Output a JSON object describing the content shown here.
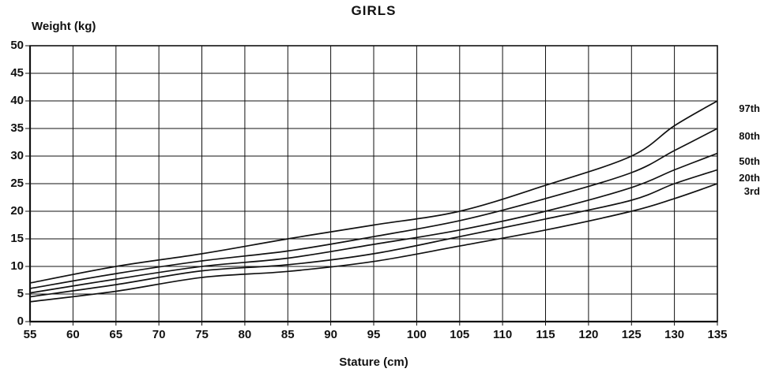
{
  "page": {
    "background": "#ffffff",
    "ink": "#111111"
  },
  "title": "GIRLS",
  "y_axis_label": "Weight (kg)",
  "x_axis_label": "Stature (cm)",
  "chart_data": {
    "type": "line",
    "title": "GIRLS",
    "xlabel": "Stature (cm)",
    "ylabel": "Weight (kg)",
    "xlim": [
      55,
      135
    ],
    "ylim": [
      0,
      50
    ],
    "x_ticks": [
      55,
      60,
      65,
      70,
      75,
      80,
      85,
      90,
      95,
      100,
      105,
      110,
      115,
      120,
      125,
      130,
      135
    ],
    "y_ticks": [
      0,
      5,
      10,
      15,
      20,
      25,
      30,
      35,
      40,
      45,
      50
    ],
    "grid": true,
    "legend_position": "labels-at-right-curve-ends",
    "x": [
      55,
      65,
      75,
      85,
      95,
      105,
      115,
      125,
      130,
      135
    ],
    "series": [
      {
        "name": "97th",
        "values": [
          7.0,
          10.0,
          12.3,
          15.0,
          17.5,
          20.0,
          24.7,
          30.0,
          35.5,
          40.0
        ]
      },
      {
        "name": "80th",
        "values": [
          6.0,
          8.7,
          11.0,
          12.8,
          15.4,
          18.3,
          22.3,
          27.0,
          31.0,
          35.0
        ]
      },
      {
        "name": "50th",
        "values": [
          5.2,
          7.7,
          10.0,
          11.5,
          14.0,
          16.6,
          20.0,
          24.3,
          27.5,
          30.5
        ]
      },
      {
        "name": "20th",
        "values": [
          4.5,
          6.7,
          9.2,
          10.3,
          12.3,
          15.4,
          18.6,
          22.0,
          25.0,
          27.5
        ]
      },
      {
        "name": "3rd",
        "values": [
          3.6,
          5.5,
          8.0,
          9.1,
          10.9,
          13.7,
          16.6,
          20.0,
          22.3,
          25.0
        ]
      }
    ]
  }
}
